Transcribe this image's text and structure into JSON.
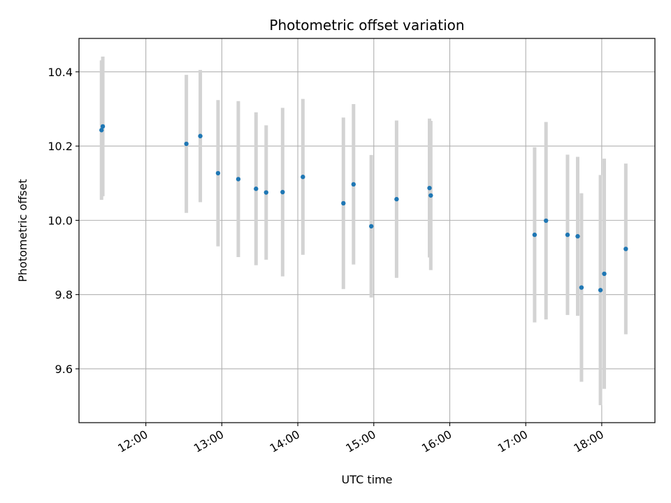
{
  "chart_data": {
    "type": "scatter",
    "title": "Photometric offset variation",
    "xlabel": "UTC time",
    "ylabel": "Photometric offset",
    "grid": true,
    "xlim_hours": [
      11.12,
      18.7
    ],
    "ylim": [
      9.455,
      10.49
    ],
    "x_ticks": [
      {
        "hour": 12,
        "label": "12:00"
      },
      {
        "hour": 13,
        "label": "13:00"
      },
      {
        "hour": 14,
        "label": "14:00"
      },
      {
        "hour": 15,
        "label": "15:00"
      },
      {
        "hour": 16,
        "label": "16:00"
      },
      {
        "hour": 17,
        "label": "17:00"
      },
      {
        "hour": 18,
        "label": "18:00"
      }
    ],
    "y_ticks": [
      {
        "value": 9.6,
        "label": "9.6"
      },
      {
        "value": 9.8,
        "label": "9.8"
      },
      {
        "value": 10.0,
        "label": "10.0"
      },
      {
        "value": 10.2,
        "label": "10.2"
      },
      {
        "value": 10.4,
        "label": "10.4"
      }
    ],
    "colors": {
      "point": "#1f77b4",
      "errorbar": "#d3d3d3",
      "grid": "#b0b0b0"
    },
    "points": [
      {
        "time": "11:25",
        "y": 10.243,
        "err": 0.188
      },
      {
        "time": "11:26",
        "y": 10.253,
        "err": 0.188
      },
      {
        "time": "12:32",
        "y": 10.206,
        "err": 0.186
      },
      {
        "time": "12:43",
        "y": 10.227,
        "err": 0.178
      },
      {
        "time": "12:57",
        "y": 10.127,
        "err": 0.197
      },
      {
        "time": "13:13",
        "y": 10.111,
        "err": 0.21
      },
      {
        "time": "13:27",
        "y": 10.085,
        "err": 0.206
      },
      {
        "time": "13:35",
        "y": 10.075,
        "err": 0.181
      },
      {
        "time": "13:48",
        "y": 10.076,
        "err": 0.227
      },
      {
        "time": "14:04",
        "y": 10.117,
        "err": 0.21
      },
      {
        "time": "14:36",
        "y": 10.046,
        "err": 0.231
      },
      {
        "time": "14:44",
        "y": 10.097,
        "err": 0.216
      },
      {
        "time": "14:58",
        "y": 9.984,
        "err": 0.192
      },
      {
        "time": "15:18",
        "y": 10.057,
        "err": 0.212
      },
      {
        "time": "15:44",
        "y": 10.087,
        "err": 0.187
      },
      {
        "time": "15:45",
        "y": 10.067,
        "err": 0.201
      },
      {
        "time": "17:07",
        "y": 9.961,
        "err": 0.236
      },
      {
        "time": "17:16",
        "y": 9.999,
        "err": 0.266
      },
      {
        "time": "17:33",
        "y": 9.961,
        "err": 0.216
      },
      {
        "time": "17:41",
        "y": 9.957,
        "err": 0.214
      },
      {
        "time": "17:44",
        "y": 9.819,
        "err": 0.254
      },
      {
        "time": "17:59",
        "y": 9.812,
        "err": 0.31
      },
      {
        "time": "18:02",
        "y": 9.856,
        "err": 0.31
      },
      {
        "time": "18:19",
        "y": 9.923,
        "err": 0.23
      }
    ]
  }
}
